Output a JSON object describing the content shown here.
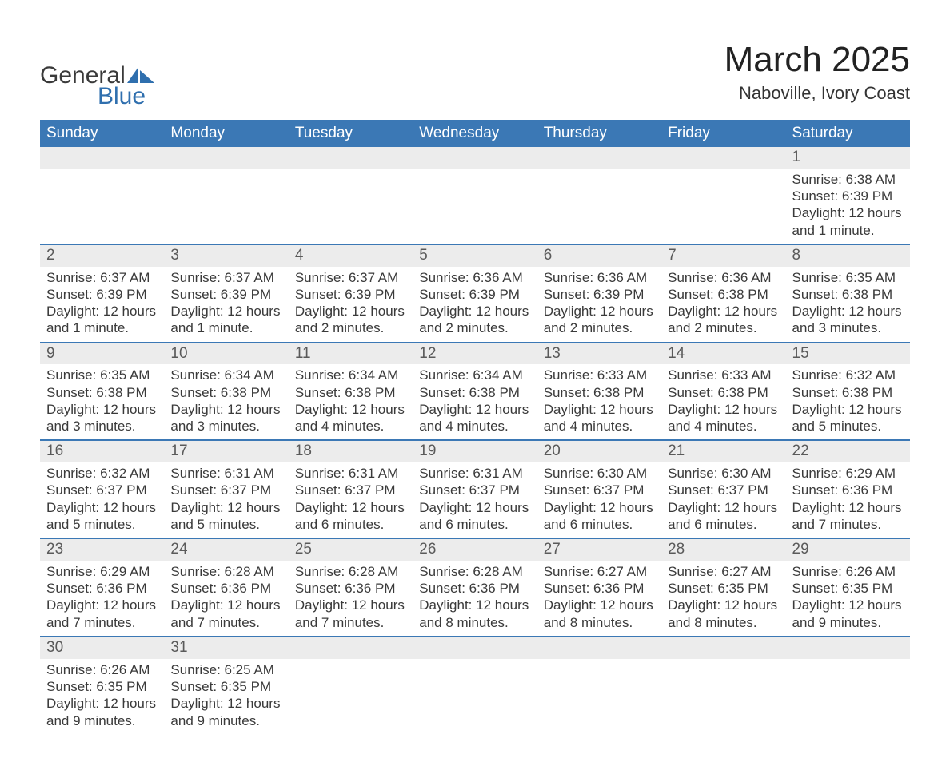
{
  "logo": {
    "text1": "General",
    "text2": "Blue",
    "icon_color": "#2f6fae"
  },
  "title": "March 2025",
  "location": "Naboville, Ivory Coast",
  "colors": {
    "header_bg": "#3b78b5",
    "header_fg": "#ffffff",
    "daynum_bg": "#ececec",
    "daynum_fg": "#5a5a5a",
    "body_fg": "#3a3a3a",
    "row_divider": "#3b78b5",
    "page_bg": "#ffffff"
  },
  "typography": {
    "title_fontsize_pt": 33,
    "location_fontsize_pt": 17,
    "weekday_fontsize_pt": 14,
    "daynum_fontsize_pt": 14,
    "body_fontsize_pt": 13,
    "font_family": "Arial"
  },
  "weekdays": [
    "Sunday",
    "Monday",
    "Tuesday",
    "Wednesday",
    "Thursday",
    "Friday",
    "Saturday"
  ],
  "labels": {
    "sunrise": "Sunrise:",
    "sunset": "Sunset:",
    "daylight": "Daylight:"
  },
  "weeks": [
    [
      null,
      null,
      null,
      null,
      null,
      null,
      {
        "n": "1",
        "sunrise": "6:38 AM",
        "sunset": "6:39 PM",
        "daylight": "12 hours and 1 minute."
      }
    ],
    [
      {
        "n": "2",
        "sunrise": "6:37 AM",
        "sunset": "6:39 PM",
        "daylight": "12 hours and 1 minute."
      },
      {
        "n": "3",
        "sunrise": "6:37 AM",
        "sunset": "6:39 PM",
        "daylight": "12 hours and 1 minute."
      },
      {
        "n": "4",
        "sunrise": "6:37 AM",
        "sunset": "6:39 PM",
        "daylight": "12 hours and 2 minutes."
      },
      {
        "n": "5",
        "sunrise": "6:36 AM",
        "sunset": "6:39 PM",
        "daylight": "12 hours and 2 minutes."
      },
      {
        "n": "6",
        "sunrise": "6:36 AM",
        "sunset": "6:39 PM",
        "daylight": "12 hours and 2 minutes."
      },
      {
        "n": "7",
        "sunrise": "6:36 AM",
        "sunset": "6:38 PM",
        "daylight": "12 hours and 2 minutes."
      },
      {
        "n": "8",
        "sunrise": "6:35 AM",
        "sunset": "6:38 PM",
        "daylight": "12 hours and 3 minutes."
      }
    ],
    [
      {
        "n": "9",
        "sunrise": "6:35 AM",
        "sunset": "6:38 PM",
        "daylight": "12 hours and 3 minutes."
      },
      {
        "n": "10",
        "sunrise": "6:34 AM",
        "sunset": "6:38 PM",
        "daylight": "12 hours and 3 minutes."
      },
      {
        "n": "11",
        "sunrise": "6:34 AM",
        "sunset": "6:38 PM",
        "daylight": "12 hours and 4 minutes."
      },
      {
        "n": "12",
        "sunrise": "6:34 AM",
        "sunset": "6:38 PM",
        "daylight": "12 hours and 4 minutes."
      },
      {
        "n": "13",
        "sunrise": "6:33 AM",
        "sunset": "6:38 PM",
        "daylight": "12 hours and 4 minutes."
      },
      {
        "n": "14",
        "sunrise": "6:33 AM",
        "sunset": "6:38 PM",
        "daylight": "12 hours and 4 minutes."
      },
      {
        "n": "15",
        "sunrise": "6:32 AM",
        "sunset": "6:38 PM",
        "daylight": "12 hours and 5 minutes."
      }
    ],
    [
      {
        "n": "16",
        "sunrise": "6:32 AM",
        "sunset": "6:37 PM",
        "daylight": "12 hours and 5 minutes."
      },
      {
        "n": "17",
        "sunrise": "6:31 AM",
        "sunset": "6:37 PM",
        "daylight": "12 hours and 5 minutes."
      },
      {
        "n": "18",
        "sunrise": "6:31 AM",
        "sunset": "6:37 PM",
        "daylight": "12 hours and 6 minutes."
      },
      {
        "n": "19",
        "sunrise": "6:31 AM",
        "sunset": "6:37 PM",
        "daylight": "12 hours and 6 minutes."
      },
      {
        "n": "20",
        "sunrise": "6:30 AM",
        "sunset": "6:37 PM",
        "daylight": "12 hours and 6 minutes."
      },
      {
        "n": "21",
        "sunrise": "6:30 AM",
        "sunset": "6:37 PM",
        "daylight": "12 hours and 6 minutes."
      },
      {
        "n": "22",
        "sunrise": "6:29 AM",
        "sunset": "6:36 PM",
        "daylight": "12 hours and 7 minutes."
      }
    ],
    [
      {
        "n": "23",
        "sunrise": "6:29 AM",
        "sunset": "6:36 PM",
        "daylight": "12 hours and 7 minutes."
      },
      {
        "n": "24",
        "sunrise": "6:28 AM",
        "sunset": "6:36 PM",
        "daylight": "12 hours and 7 minutes."
      },
      {
        "n": "25",
        "sunrise": "6:28 AM",
        "sunset": "6:36 PM",
        "daylight": "12 hours and 7 minutes."
      },
      {
        "n": "26",
        "sunrise": "6:28 AM",
        "sunset": "6:36 PM",
        "daylight": "12 hours and 8 minutes."
      },
      {
        "n": "27",
        "sunrise": "6:27 AM",
        "sunset": "6:36 PM",
        "daylight": "12 hours and 8 minutes."
      },
      {
        "n": "28",
        "sunrise": "6:27 AM",
        "sunset": "6:35 PM",
        "daylight": "12 hours and 8 minutes."
      },
      {
        "n": "29",
        "sunrise": "6:26 AM",
        "sunset": "6:35 PM",
        "daylight": "12 hours and 9 minutes."
      }
    ],
    [
      {
        "n": "30",
        "sunrise": "6:26 AM",
        "sunset": "6:35 PM",
        "daylight": "12 hours and 9 minutes."
      },
      {
        "n": "31",
        "sunrise": "6:25 AM",
        "sunset": "6:35 PM",
        "daylight": "12 hours and 9 minutes."
      },
      null,
      null,
      null,
      null,
      null
    ]
  ]
}
